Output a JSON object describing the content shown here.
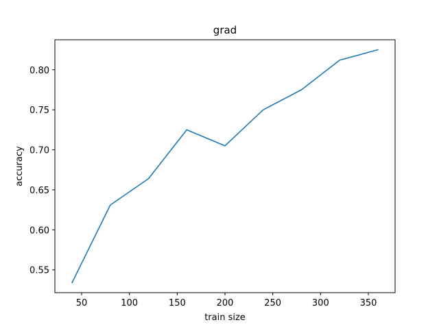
{
  "chart_data": {
    "type": "line",
    "title": "grad",
    "xlabel": "train size",
    "ylabel": "accuracy",
    "xlim": [
      22,
      378
    ],
    "ylim": [
      0.5215,
      0.8375
    ],
    "xticks": [
      50,
      100,
      150,
      200,
      250,
      300,
      350
    ],
    "xtick_labels": [
      "50",
      "100",
      "150",
      "200",
      "250",
      "300",
      "350"
    ],
    "yticks": [
      0.55,
      0.6,
      0.65,
      0.7,
      0.75,
      0.8
    ],
    "ytick_labels": [
      "0.55",
      "0.60",
      "0.65",
      "0.70",
      "0.75",
      "0.80"
    ],
    "grid": false,
    "series": [
      {
        "color": "#1f77b4",
        "x": [
          40,
          80,
          120,
          160,
          200,
          240,
          280,
          320,
          360
        ],
        "y": [
          0.534,
          0.631,
          0.664,
          0.725,
          0.705,
          0.75,
          0.775,
          0.812,
          0.825
        ]
      }
    ]
  }
}
